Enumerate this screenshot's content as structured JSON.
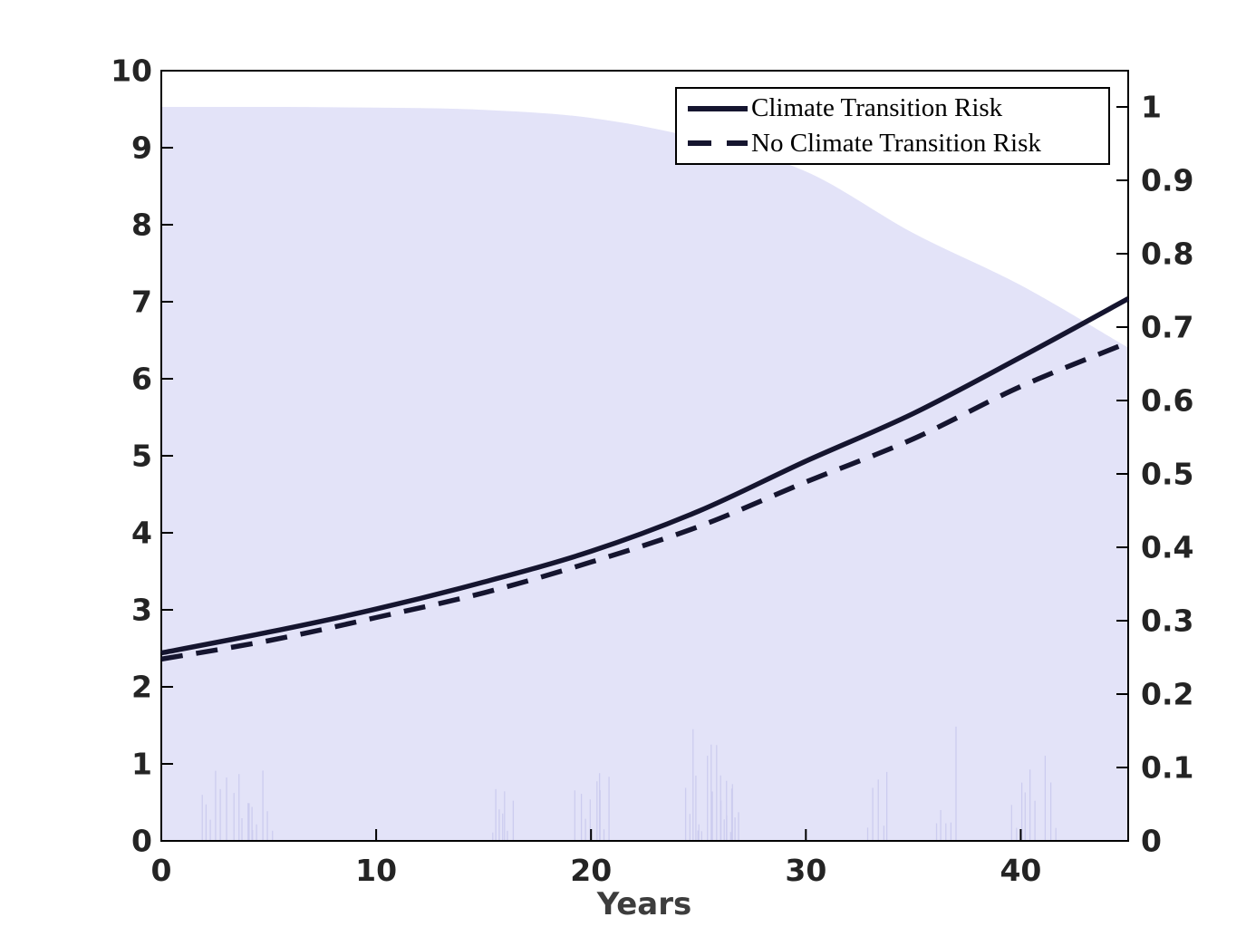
{
  "figure": {
    "background": "#ffffff"
  },
  "legend": {
    "position": "top-right",
    "items": [
      {
        "label": "Climate Transition Risk",
        "line_style": "solid"
      },
      {
        "label": "No Climate Transition Risk",
        "line_style": "dashed"
      }
    ]
  },
  "chart_data": {
    "type": "line",
    "title": "",
    "xlabel": "Years",
    "xlim": [
      0,
      45
    ],
    "x_ticks": [
      0,
      10,
      20,
      30,
      40
    ],
    "left_axis": {
      "lim": [
        0,
        10
      ],
      "ticks": [
        0,
        1,
        2,
        3,
        4,
        5,
        6,
        7,
        8,
        9,
        10
      ]
    },
    "right_axis": {
      "ticks": [
        0,
        0.1,
        0.2,
        0.3,
        0.4,
        0.5,
        0.6,
        0.7,
        0.8,
        0.9,
        1
      ]
    },
    "grid": false,
    "x": [
      0,
      5,
      10,
      15,
      20,
      25,
      30,
      35,
      40,
      45
    ],
    "series": [
      {
        "name": "Climate Transition Risk",
        "line_style": "solid",
        "axis": "left",
        "values": [
          2.44,
          2.71,
          3.01,
          3.36,
          3.76,
          4.28,
          4.93,
          5.55,
          6.28,
          7.04
        ]
      },
      {
        "name": "No Climate Transition Risk",
        "line_style": "dashed",
        "axis": "left",
        "values": [
          2.36,
          2.6,
          2.9,
          3.22,
          3.62,
          4.08,
          4.66,
          5.22,
          5.9,
          6.47
        ]
      }
    ],
    "area": {
      "name": "no-transition-probability-region",
      "axis": "right",
      "values": [
        1.0,
        1.0,
        0.999,
        0.996,
        0.985,
        0.957,
        0.912,
        0.828,
        0.757,
        0.672
      ],
      "color": "#e3e3f8"
    },
    "colors": {
      "line": "#15152f",
      "fill": "#e3e3f8",
      "streaks": "#b9b9e8",
      "frame": "#000000",
      "tick_text": "#242424",
      "xlabel_text": "#3d3d3d"
    }
  }
}
